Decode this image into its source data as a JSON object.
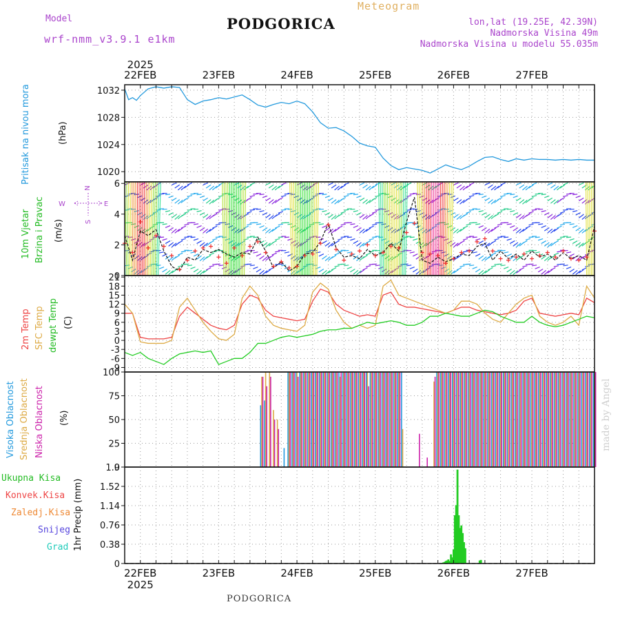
{
  "header": {
    "model_label": "Model",
    "model_name": "wrf-nmm_v3.9.1 e1km",
    "title": "PODGORICA",
    "meteogram": "Meteogram",
    "coords": "lon,lat (19.25E, 42.39N)",
    "elevation": "Nadmorska Visina 49m",
    "model_elevation": "Nadmorska Visina u modelu 55.035m"
  },
  "footer": {
    "station": "PODGORICA",
    "credit": "made by Angel"
  },
  "colors": {
    "pressure": "#2299dd",
    "t2m": "#ee4444",
    "tsfc": "#ddaa44",
    "dewpt": "#22cc22",
    "cloud_high": "#2299dd",
    "cloud_mid": "#ddaa44",
    "cloud_low": "#cc22aa",
    "precip_total": "#22cc22",
    "precip_conv": "#ee4444",
    "precip_frozen": "#ee8833",
    "snow": "#5544dd",
    "hail": "#22ccbb"
  },
  "chart_data": [
    {
      "type": "line",
      "name": "pressure",
      "ylabel_line1": "Pritisak na nivou mora",
      "ylabel_line2": "(hPa)",
      "ylim": [
        1018.5,
        1032.8
      ],
      "yticks": [
        1020,
        1024,
        1028,
        1032
      ],
      "x": [
        0,
        3,
        6,
        9,
        12,
        18,
        24,
        30,
        36,
        42,
        48,
        54,
        60,
        66,
        72,
        78,
        84,
        90,
        96,
        102,
        108,
        114,
        120,
        126,
        132,
        138,
        144,
        150,
        156,
        162,
        168,
        174,
        180,
        186,
        192,
        198,
        204,
        210,
        216,
        222,
        228,
        234,
        240,
        246,
        252,
        258,
        264,
        270,
        276,
        282,
        288,
        294,
        300,
        306,
        312,
        318,
        324,
        330,
        336,
        342,
        348,
        354,
        360
      ],
      "values": [
        1032.2,
        1030.6,
        1030.9,
        1030.5,
        1031.2,
        1032.2,
        1032.5,
        1032.3,
        1032.5,
        1032.4,
        1030.6,
        1029.9,
        1030.4,
        1030.6,
        1030.9,
        1030.7,
        1031.0,
        1031.3,
        1030.6,
        1029.8,
        1029.5,
        1029.9,
        1030.2,
        1030.0,
        1030.4,
        1030.0,
        1028.8,
        1027.2,
        1026.4,
        1026.5,
        1026.0,
        1025.2,
        1024.2,
        1023.8,
        1023.6,
        1022.0,
        1020.9,
        1020.3,
        1020.6,
        1020.4,
        1020.2,
        1019.8,
        1020.4,
        1021.0,
        1020.6,
        1020.3,
        1020.8,
        1021.5,
        1022.1,
        1022.2,
        1021.8,
        1021.5,
        1021.9,
        1021.7,
        1021.9,
        1021.8,
        1021.8,
        1021.7,
        1021.8,
        1021.7,
        1021.8,
        1021.7,
        1021.7
      ]
    },
    {
      "type": "line",
      "name": "wind",
      "ylabel_line1": "10m Vjetar",
      "ylabel_line2": "Brzina i Pravac",
      "ylabel_unit": "(m/s)",
      "compass": {
        "n": "N",
        "s": "S",
        "e": "E",
        "w": "W"
      },
      "ylim": [
        0,
        6.1
      ],
      "yticks": [
        0,
        2,
        4,
        6
      ],
      "x": [
        0,
        6,
        12,
        18,
        24,
        30,
        36,
        42,
        48,
        54,
        60,
        66,
        72,
        78,
        84,
        90,
        96,
        102,
        108,
        114,
        120,
        126,
        132,
        138,
        144,
        150,
        156,
        162,
        168,
        174,
        180,
        186,
        192,
        198,
        204,
        210,
        216,
        222,
        228,
        234,
        240,
        246,
        252,
        258,
        264,
        270,
        276,
        282,
        288,
        294,
        300,
        306,
        312,
        318,
        324,
        330,
        336,
        342,
        348,
        354,
        360
      ],
      "speed": [
        2.6,
        1.0,
        2.9,
        2.6,
        3.0,
        1.6,
        0.6,
        0.3,
        1.2,
        1.0,
        1.7,
        1.5,
        1.7,
        1.4,
        1.2,
        1.5,
        1.4,
        2.5,
        1.6,
        0.5,
        0.9,
        0.3,
        0.6,
        1.4,
        1.5,
        2.2,
        3.4,
        1.8,
        1.2,
        1.3,
        1.1,
        1.7,
        1.3,
        1.5,
        2.1,
        1.6,
        3.5,
        5.1,
        1.0,
        0.8,
        1.2,
        0.9,
        1.1,
        1.4,
        1.3,
        1.9,
        2.1,
        1.0,
        1.6,
        1.1,
        1.4,
        1.0,
        1.6,
        1.2,
        1.4,
        1.0,
        1.5,
        1.1,
        1.3,
        1.0,
        3.2
      ],
      "gust_markers": [
        2.1,
        1.5,
        3.5,
        1.8,
        2.6,
        1.9,
        1.3,
        0.4,
        1.0,
        1.6,
        1.8,
        1.9,
        1.2,
        0.8,
        1.8,
        1.3,
        1.9,
        2.2,
        1.5,
        0.6,
        0.9,
        0.5,
        0.6,
        1.3,
        1.4,
        2.1,
        3.3,
        1.7,
        1.0,
        1.4,
        1.6,
        2.0,
        1.3,
        1.5,
        1.9,
        1.8,
        2.8,
        3.4,
        1.5,
        1.4,
        1.3,
        0.8,
        1.1,
        1.5,
        1.6,
        2.2,
        2.4,
        1.6,
        1.1,
        1.0,
        1.2,
        1.4,
        1.1,
        1.3,
        1.5,
        1.2,
        1.6,
        1.1,
        1.0,
        1.2,
        2.9
      ]
    },
    {
      "type": "line",
      "name": "temperature",
      "ylabel_t2m": "2m Temp",
      "ylabel_tsfc": "SFC Temp",
      "ylabel_dew": "dewpt Temp",
      "ylabel_unit": "(C)",
      "ylim": [
        -10.5,
        21.5
      ],
      "yticks": [
        -9,
        -6,
        -3,
        0,
        3,
        6,
        9,
        12,
        15,
        18,
        21
      ],
      "x": [
        0,
        6,
        12,
        18,
        24,
        30,
        36,
        42,
        48,
        54,
        60,
        66,
        72,
        78,
        84,
        90,
        96,
        102,
        108,
        114,
        120,
        126,
        132,
        138,
        144,
        150,
        156,
        162,
        168,
        174,
        180,
        186,
        192,
        198,
        204,
        210,
        216,
        222,
        228,
        234,
        240,
        246,
        252,
        258,
        264,
        270,
        276,
        282,
        288,
        294,
        300,
        306,
        312,
        318,
        324,
        330,
        336,
        342,
        348,
        354,
        360
      ],
      "series": [
        {
          "name": "2m Temp",
          "values": [
            9,
            9,
            1,
            0.5,
            0.5,
            0.5,
            1,
            8,
            11,
            9,
            7,
            5,
            4,
            3.5,
            5,
            12,
            15,
            14,
            10,
            8,
            7.5,
            7,
            6.5,
            7,
            13,
            17,
            16,
            12,
            10,
            9,
            8,
            8.5,
            8,
            15,
            16,
            12,
            11,
            11,
            10.5,
            10,
            9.5,
            9,
            10,
            11,
            11,
            10,
            9.5,
            9,
            8.5,
            9,
            10,
            13,
            14,
            9,
            8.5,
            8,
            8.5,
            9,
            8.5,
            14,
            12.5
          ]
        },
        {
          "name": "SFC Temp",
          "values": [
            12,
            9,
            -0.5,
            -1,
            -1,
            -1,
            0,
            11,
            14,
            10,
            6,
            3,
            0.5,
            0,
            2,
            14,
            18,
            15,
            8,
            5,
            4,
            3.5,
            3,
            5,
            16,
            19,
            17,
            10,
            6,
            4,
            5,
            4,
            5,
            18,
            20,
            15,
            14,
            13,
            12,
            11,
            10,
            9,
            10,
            13,
            13,
            12,
            9,
            7,
            6,
            9,
            12,
            14,
            15,
            8,
            6,
            5,
            6,
            8,
            5,
            18,
            14
          ]
        },
        {
          "name": "dewpt Temp",
          "values": [
            -4,
            -5,
            -4,
            -6,
            -7,
            -8,
            -6,
            -4.5,
            -4,
            -3.5,
            -4,
            -3.5,
            -8,
            -7,
            -6,
            -6,
            -4,
            -1,
            -1,
            0,
            1,
            1.5,
            1,
            1.5,
            2,
            3,
            3.5,
            3.5,
            4,
            4,
            5,
            6,
            5.5,
            6,
            6.5,
            6,
            5,
            5,
            6,
            8,
            8,
            9,
            8.5,
            8,
            8,
            9,
            10,
            9.5,
            8,
            7,
            6,
            6,
            8,
            6,
            5,
            4.5,
            5,
            6,
            7,
            8,
            7.5
          ]
        }
      ]
    },
    {
      "type": "bar",
      "name": "cloud",
      "ylabel_high": "Visoka Oblacnost",
      "ylabel_mid": "Srednja Oblacnost",
      "ylabel_low": "Niska Oblacnost",
      "ylabel_unit": "(%)",
      "ylim": [
        0,
        100
      ],
      "yticks": [
        0,
        25,
        50,
        75,
        100
      ],
      "x": [
        105,
        108,
        111,
        114,
        117,
        120,
        123,
        126,
        129,
        132,
        135,
        138,
        141,
        144,
        147,
        150,
        153,
        156,
        159,
        162,
        165,
        168,
        171,
        174,
        177,
        180,
        183,
        186,
        189,
        192,
        195,
        198,
        201,
        204,
        207,
        210,
        213,
        216,
        219,
        222,
        225,
        228,
        231,
        234,
        237,
        240,
        243,
        246,
        249,
        252,
        255,
        258,
        261,
        264,
        267,
        270,
        273,
        276,
        279,
        282,
        285,
        288,
        291,
        294,
        297,
        300,
        303,
        306,
        309,
        312,
        315,
        318,
        321,
        324,
        327,
        330,
        333,
        336,
        339,
        342,
        345,
        348,
        351,
        354,
        357,
        360
      ],
      "series": [
        {
          "name": "Visoka Oblacnost",
          "values": [
            65,
            70,
            0,
            0,
            0,
            0,
            20,
            100,
            100,
            100,
            100,
            100,
            100,
            100,
            100,
            100,
            100,
            100,
            100,
            100,
            100,
            100,
            100,
            100,
            100,
            100,
            100,
            100,
            100,
            100,
            100,
            100,
            100,
            100,
            100,
            100,
            100,
            0,
            0,
            0,
            0,
            0,
            0,
            0,
            0,
            100,
            100,
            100,
            100,
            100,
            100,
            100,
            100,
            100,
            100,
            100,
            100,
            100,
            100,
            100,
            100,
            100,
            100,
            100,
            100,
            100,
            100,
            100,
            100,
            100,
            100,
            100,
            100,
            100,
            100,
            100,
            100,
            100,
            100,
            100,
            100,
            100,
            100,
            100,
            100,
            100
          ]
        },
        {
          "name": "Srednja Oblacnost",
          "values": [
            95,
            100,
            100,
            60,
            50,
            0,
            0,
            100,
            100,
            100,
            100,
            100,
            100,
            100,
            100,
            100,
            100,
            100,
            100,
            100,
            95,
            100,
            100,
            100,
            100,
            100,
            100,
            100,
            100,
            100,
            100,
            100,
            100,
            100,
            100,
            100,
            40,
            0,
            0,
            0,
            0,
            0,
            0,
            0,
            90,
            100,
            100,
            100,
            100,
            100,
            100,
            100,
            100,
            100,
            100,
            100,
            100,
            100,
            100,
            100,
            100,
            100,
            100,
            100,
            100,
            100,
            100,
            100,
            100,
            100,
            100,
            100,
            100,
            100,
            100,
            100,
            100,
            100,
            100,
            100,
            100,
            100,
            100,
            100,
            100,
            100
          ]
        },
        {
          "name": "Niska Oblacnost",
          "values": [
            95,
            85,
            95,
            50,
            40,
            0,
            0,
            100,
            100,
            95,
            100,
            100,
            100,
            100,
            100,
            100,
            100,
            100,
            100,
            100,
            100,
            100,
            100,
            100,
            100,
            100,
            100,
            85,
            100,
            100,
            100,
            100,
            100,
            100,
            100,
            100,
            0,
            0,
            0,
            0,
            35,
            0,
            10,
            0,
            95,
            100,
            100,
            100,
            100,
            100,
            100,
            100,
            100,
            100,
            100,
            100,
            100,
            100,
            100,
            100,
            100,
            100,
            100,
            100,
            100,
            100,
            100,
            100,
            100,
            100,
            100,
            100,
            100,
            100,
            100,
            100,
            100,
            100,
            100,
            100,
            100,
            100,
            100,
            100,
            100,
            100
          ]
        }
      ]
    },
    {
      "type": "bar",
      "name": "precip",
      "ylabel": "1hr Precip (mm)",
      "legend": [
        "Ukupna Kisa",
        "Konvek.Kisa",
        "Zaledj.Kisa",
        "Snijeg",
        "Grad"
      ],
      "ylim": [
        0,
        1.9
      ],
      "yticks": [
        0,
        0.38,
        0.76,
        1.14,
        1.52,
        1.9
      ],
      "ytick_labels": [
        "0",
        "0.38",
        "0.76",
        "1.14",
        "1.52",
        "1.9"
      ],
      "x": [
        244,
        245,
        246,
        247,
        248,
        249,
        250,
        251,
        252,
        253,
        254,
        255,
        256,
        257,
        258,
        259,
        260,
        261,
        272,
        273
      ],
      "values": [
        0.02,
        0.03,
        0.05,
        0.06,
        0.08,
        0.05,
        0.18,
        0.12,
        0.28,
        0.95,
        1.15,
        1.85,
        0.95,
        0.7,
        0.75,
        0.6,
        0.42,
        0.3,
        0.06,
        0.07
      ]
    }
  ],
  "x_axis": {
    "year": "2025",
    "days": [
      {
        "label": "22FEB",
        "x": 12
      },
      {
        "label": "23FEB",
        "x": 72
      },
      {
        "label": "24FEB",
        "x": 132
      },
      {
        "label": "25FEB",
        "x": 192
      },
      {
        "label": "26FEB",
        "x": 252
      },
      {
        "label": "27FEB",
        "x": 312
      }
    ],
    "xlim": [
      0,
      360
    ]
  }
}
